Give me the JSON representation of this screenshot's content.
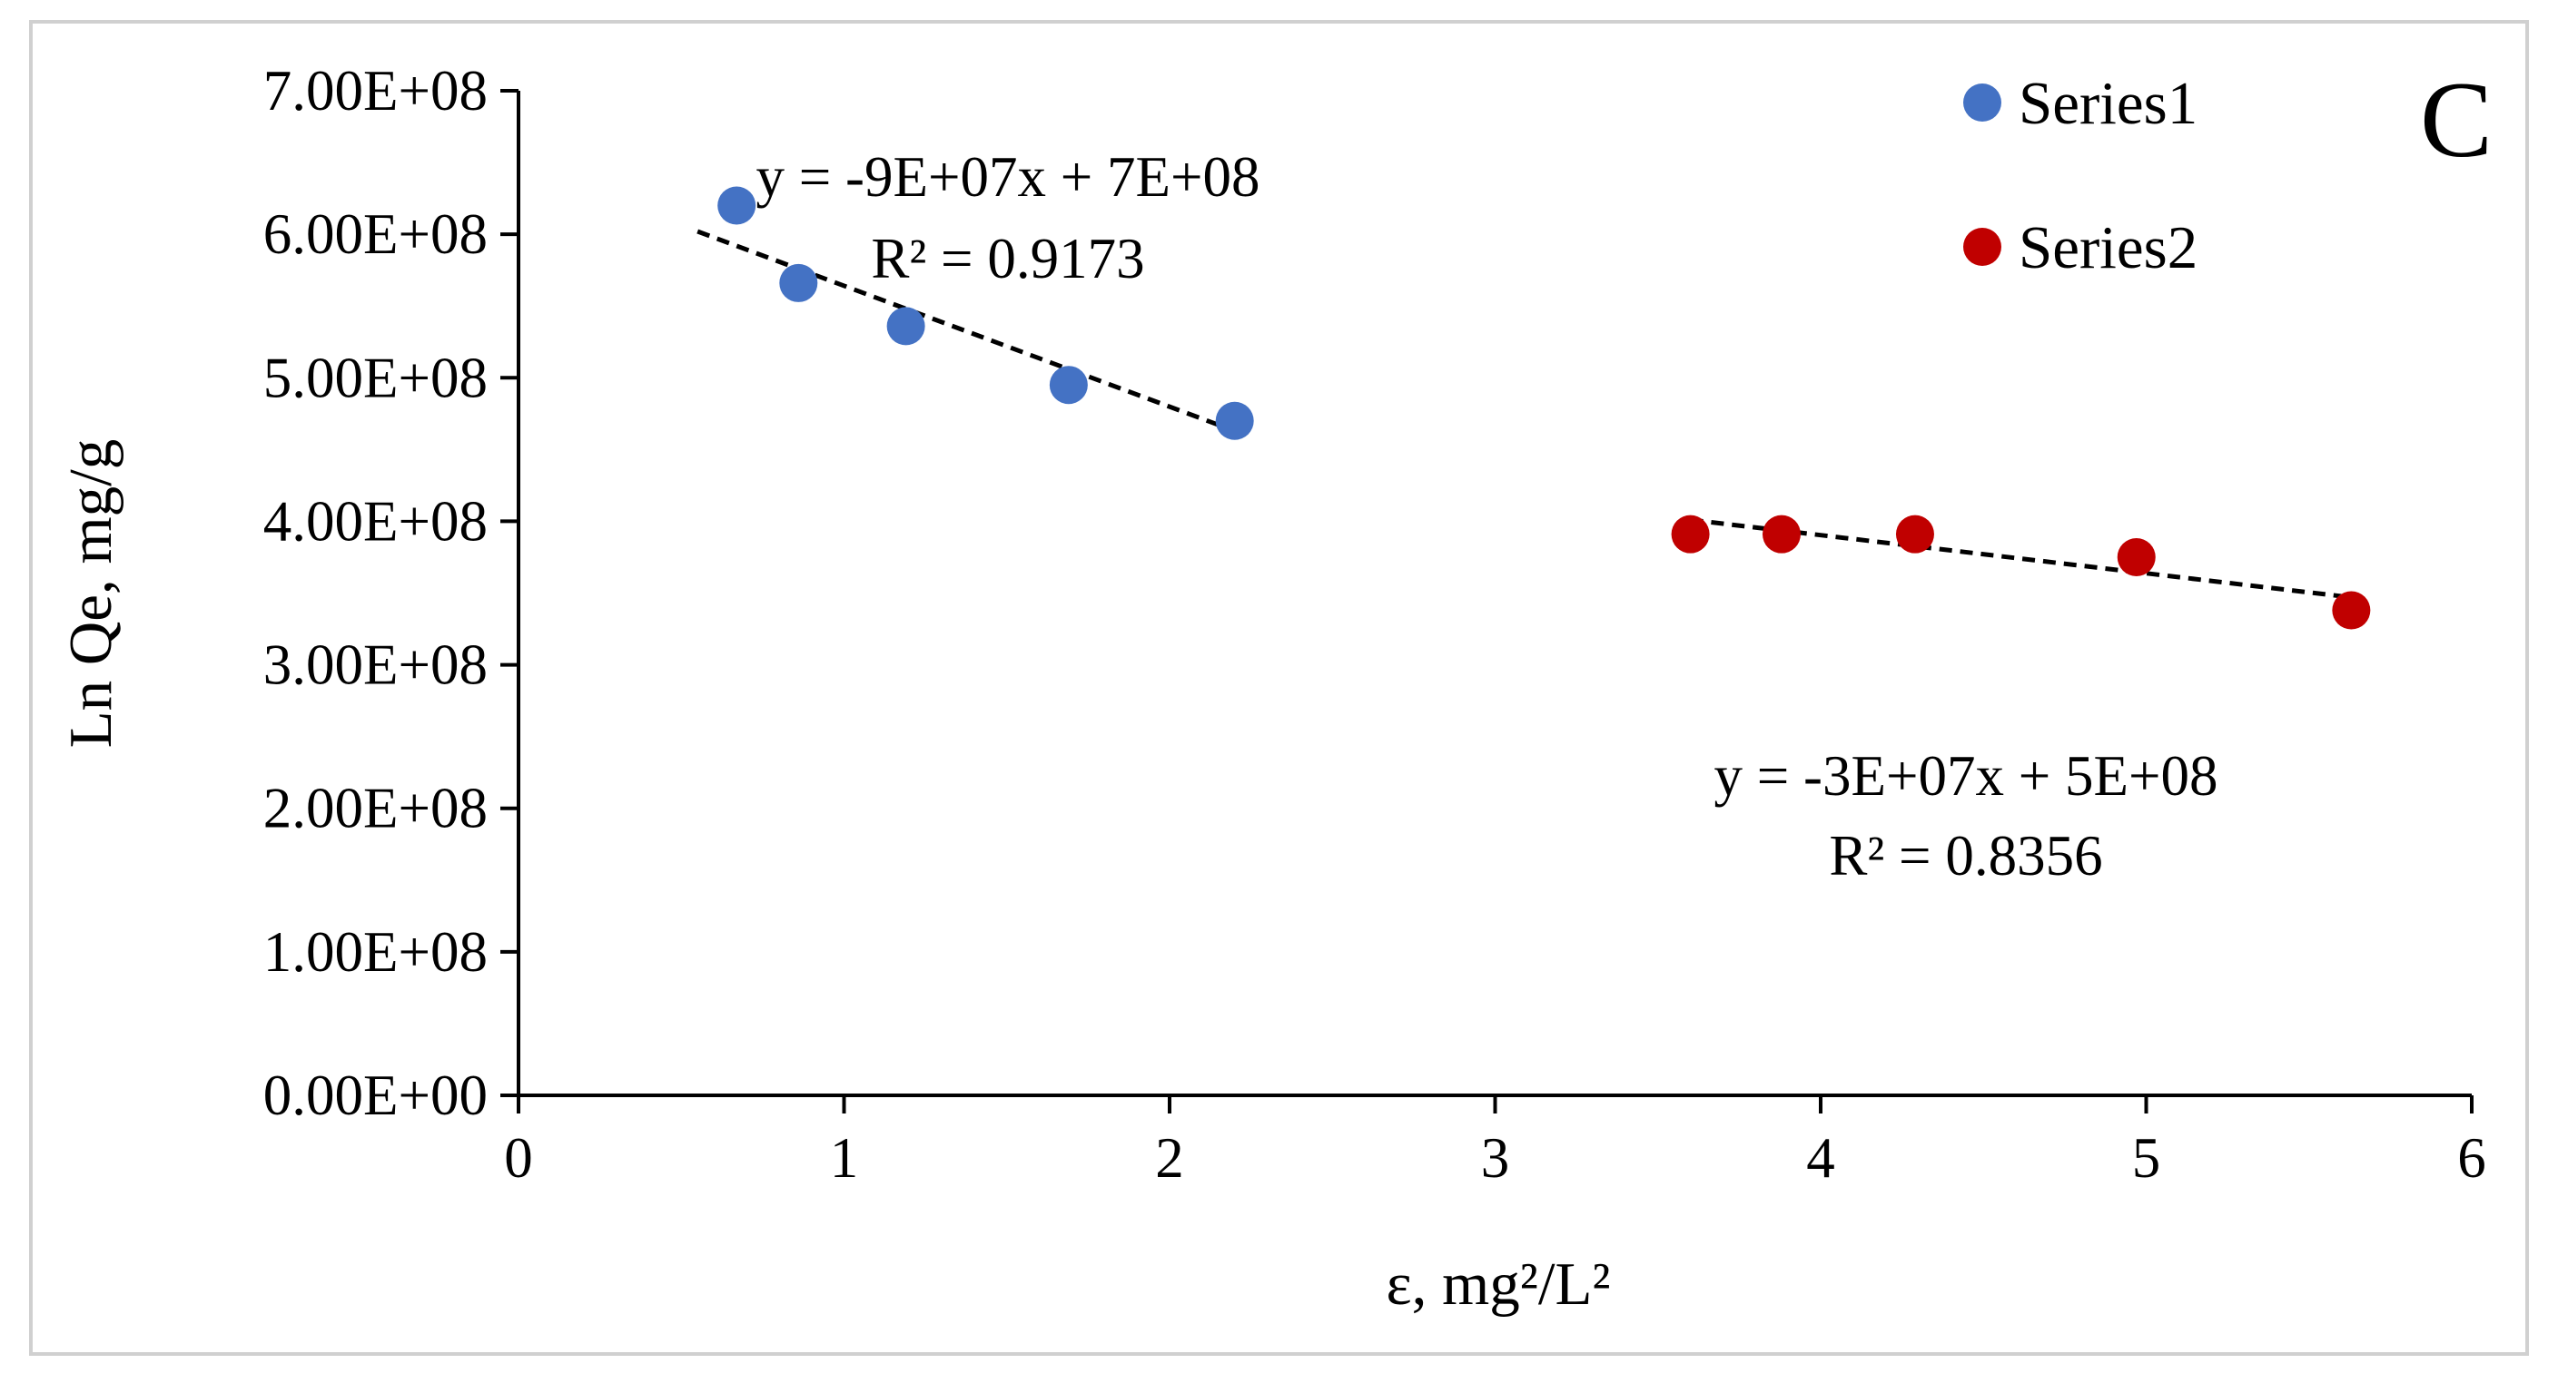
{
  "chart_data": {
    "type": "scatter",
    "panel_label": "C",
    "xlabel": "ε, mg²/L²",
    "ylabel": "Ln Qe, mg/g",
    "xlim": [
      0,
      6
    ],
    "ylim": [
      0,
      700000000
    ],
    "x_ticks": [
      0,
      1,
      2,
      3,
      4,
      5,
      6
    ],
    "x_tick_labels": [
      "0",
      "1",
      "2",
      "3",
      "4",
      "5",
      "6"
    ],
    "y_ticks": [
      0,
      100000000,
      200000000,
      300000000,
      400000000,
      500000000,
      600000000,
      700000000
    ],
    "y_tick_labels": [
      "0.00E+00",
      "1.00E+08",
      "2.00E+08",
      "3.00E+08",
      "4.00E+08",
      "5.00E+08",
      "6.00E+08",
      "7.00E+08"
    ],
    "legend_position": "top-right",
    "series": [
      {
        "name": "Series1",
        "color": "#4472C4",
        "x": [
          0.67,
          0.86,
          1.19,
          1.69,
          2.2
        ],
        "y": [
          620000000,
          566000000,
          536000000,
          495000000,
          470000000
        ],
        "trendline": {
          "x_range": [
            0.55,
            2.2
          ],
          "y_range": [
            602000000,
            463000000
          ],
          "equation": "y = -9E+07x + 7E+08",
          "r_squared": "R² = 0.9173"
        }
      },
      {
        "name": "Series2",
        "color": "#C00000",
        "x": [
          3.6,
          3.88,
          4.29,
          4.97,
          5.63
        ],
        "y": [
          391000000,
          391000000,
          391000000,
          375000000,
          338000000
        ],
        "trendline": {
          "x_range": [
            3.6,
            5.63
          ],
          "y_range": [
            401000000,
            347000000
          ],
          "equation": "y = -3E+07x + 5E+08",
          "r_squared": "R² = 0.8356"
        }
      }
    ]
  }
}
